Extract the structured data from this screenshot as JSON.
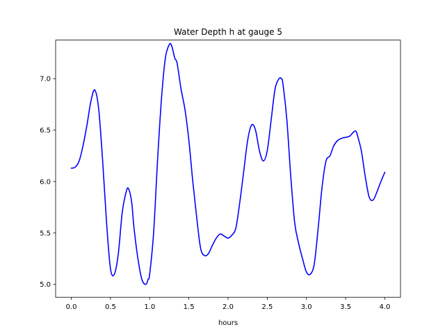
{
  "chart_data": {
    "type": "line",
    "title": "Water Depth h at gauge 5",
    "xlabel": "hours",
    "ylabel": "",
    "xlim": [
      -0.2,
      4.2
    ],
    "ylim": [
      4.875,
      7.375
    ],
    "xticks": [
      0.0,
      0.5,
      1.0,
      1.5,
      2.0,
      2.5,
      3.0,
      3.5,
      4.0
    ],
    "xtick_labels": [
      "0.0",
      "0.5",
      "1.0",
      "1.5",
      "2.0",
      "2.5",
      "3.0",
      "3.5",
      "4.0"
    ],
    "yticks": [
      5.0,
      5.5,
      6.0,
      6.5,
      7.0
    ],
    "ytick_labels": [
      "5.0",
      "5.5",
      "6.0",
      "6.5",
      "7.0"
    ],
    "grid": false,
    "series": [
      {
        "color": "#0000ff",
        "x": [
          0.0,
          0.05,
          0.1,
          0.15,
          0.2,
          0.25,
          0.3,
          0.35,
          0.4,
          0.45,
          0.5,
          0.55,
          0.6,
          0.65,
          0.7,
          0.73,
          0.77,
          0.8,
          0.85,
          0.9,
          0.95,
          0.98,
          1.0,
          1.05,
          1.1,
          1.15,
          1.2,
          1.25,
          1.28,
          1.32,
          1.35,
          1.4,
          1.45,
          1.5,
          1.55,
          1.6,
          1.65,
          1.7,
          1.75,
          1.8,
          1.85,
          1.9,
          1.95,
          2.0,
          2.05,
          2.1,
          2.15,
          2.2,
          2.25,
          2.3,
          2.35,
          2.4,
          2.45,
          2.5,
          2.55,
          2.6,
          2.65,
          2.68,
          2.7,
          2.75,
          2.8,
          2.85,
          2.9,
          2.95,
          3.0,
          3.05,
          3.1,
          3.15,
          3.2,
          3.25,
          3.3,
          3.35,
          3.4,
          3.45,
          3.5,
          3.55,
          3.6,
          3.63,
          3.65,
          3.7,
          3.75,
          3.8,
          3.85,
          3.9,
          3.95,
          4.0
        ],
        "y": [
          6.13,
          6.14,
          6.2,
          6.35,
          6.55,
          6.78,
          6.89,
          6.7,
          6.2,
          5.6,
          5.15,
          5.1,
          5.3,
          5.7,
          5.9,
          5.93,
          5.8,
          5.55,
          5.25,
          5.05,
          5.0,
          5.05,
          5.1,
          5.5,
          6.2,
          6.8,
          7.2,
          7.33,
          7.32,
          7.2,
          7.15,
          6.9,
          6.7,
          6.4,
          6.0,
          5.65,
          5.35,
          5.28,
          5.3,
          5.38,
          5.45,
          5.49,
          5.47,
          5.45,
          5.48,
          5.55,
          5.8,
          6.1,
          6.4,
          6.55,
          6.5,
          6.3,
          6.2,
          6.3,
          6.6,
          6.9,
          7.0,
          7.0,
          6.95,
          6.6,
          6.05,
          5.6,
          5.4,
          5.25,
          5.12,
          5.1,
          5.2,
          5.55,
          5.95,
          6.2,
          6.25,
          6.35,
          6.4,
          6.42,
          6.43,
          6.44,
          6.48,
          6.49,
          6.45,
          6.3,
          6.05,
          5.85,
          5.82,
          5.9,
          6.0,
          6.09
        ]
      }
    ]
  }
}
